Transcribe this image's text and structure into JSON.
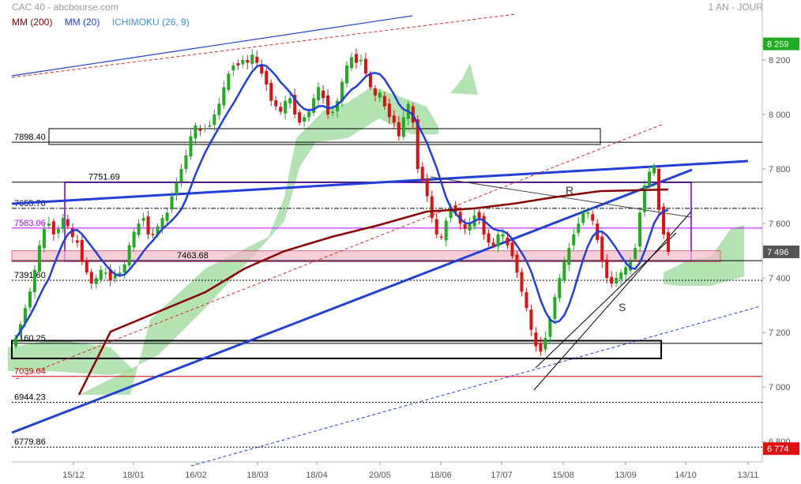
{
  "header": {
    "title": "CAC 40 - abcbourse.com",
    "period": "1 AN - JOUR"
  },
  "legend": [
    {
      "label": "MM (200)",
      "color": "#8b0000"
    },
    {
      "label": "MM (20)",
      "color": "#1f3fd8"
    },
    {
      "label": "ICHIMOKU (26, 9)",
      "color": "#3f8fd8"
    }
  ],
  "chart_data": {
    "type": "line",
    "y_axis": {
      "ticks": [
        "8 200",
        "8 000",
        "7 800",
        "7 600",
        "7 400",
        "7 200",
        "7 000",
        "6 800"
      ],
      "tick_values": [
        8200,
        8000,
        7800,
        7600,
        7400,
        7200,
        7000,
        6800
      ],
      "high_badge": "8 259",
      "high_value": 8259,
      "last_badge": "7 496",
      "last_value": 7496,
      "low_badge": "6 774",
      "low_value": 6774
    },
    "x_axis": {
      "ticks": [
        "15/12",
        "18/01",
        "16/02",
        "18/03",
        "18/04",
        "20/05",
        "18/06",
        "17/07",
        "15/08",
        "13/09",
        "14/10",
        "13/11"
      ]
    },
    "level_lines": [
      {
        "label": "7898.40",
        "value": 7898.4,
        "color": "#000000",
        "style": "solid"
      },
      {
        "label": "7751.69",
        "value": 7751.69,
        "color": "#000000",
        "style": "solid"
      },
      {
        "label": "7655.76",
        "value": 7655.76,
        "color": "#000000",
        "style": "dashdot"
      },
      {
        "label": "7583.06",
        "value": 7583.06,
        "color": "#b000ff",
        "style": "solid"
      },
      {
        "label": "7463.68",
        "value": 7463.68,
        "color": "#000000",
        "style": "solid"
      },
      {
        "label": "7391.60",
        "value": 7391.6,
        "color": "#000000",
        "style": "dotted"
      },
      {
        "label": "7160.25",
        "value": 7160.25,
        "color": "#000000",
        "style": "solid"
      },
      {
        "label": "7039.04",
        "value": 7039.04,
        "color": "#cc0000",
        "style": "solid"
      },
      {
        "label": "6944.23",
        "value": 6944.23,
        "color": "#000000",
        "style": "dotted"
      },
      {
        "label": "6779.86",
        "value": 6779.86,
        "color": "#000000",
        "style": "dotted"
      }
    ],
    "annotations": [
      "R",
      "S"
    ],
    "close_series": [
      7180,
      7230,
      7290,
      7350,
      7430,
      7520,
      7580,
      7600,
      7560,
      7580,
      7620,
      7590,
      7550,
      7530,
      7460,
      7420,
      7380,
      7400,
      7430,
      7420,
      7390,
      7410,
      7420,
      7450,
      7520,
      7570,
      7600,
      7620,
      7560,
      7560,
      7590,
      7620,
      7640,
      7700,
      7750,
      7800,
      7850,
      7920,
      7960,
      7940,
      7950,
      7960,
      8000,
      8040,
      8100,
      8150,
      8180,
      8180,
      8200,
      8190,
      8220,
      8190,
      8150,
      8110,
      8050,
      8030,
      8010,
      8050,
      8060,
      8000,
      7970,
      7990,
      8010,
      8060,
      8100,
      8060,
      8000,
      8010,
      8050,
      8120,
      8180,
      8210,
      8190,
      8200,
      8150,
      8100,
      8070,
      8080,
      8030,
      7990,
      7970,
      7920,
      7990,
      8040,
      7970,
      7800,
      7760,
      7700,
      7620,
      7560,
      7550,
      7610,
      7660,
      7640,
      7600,
      7580,
      7600,
      7630,
      7620,
      7560,
      7530,
      7520,
      7560,
      7560,
      7520,
      7480,
      7420,
      7350,
      7290,
      7210,
      7150,
      7130,
      7180,
      7250,
      7330,
      7400,
      7460,
      7510,
      7560,
      7600,
      7640,
      7640,
      7610,
      7540,
      7460,
      7400,
      7380,
      7400,
      7420,
      7440,
      7460,
      7510,
      7640,
      7740,
      7790,
      7810,
      7650,
      7560,
      7496
    ]
  }
}
